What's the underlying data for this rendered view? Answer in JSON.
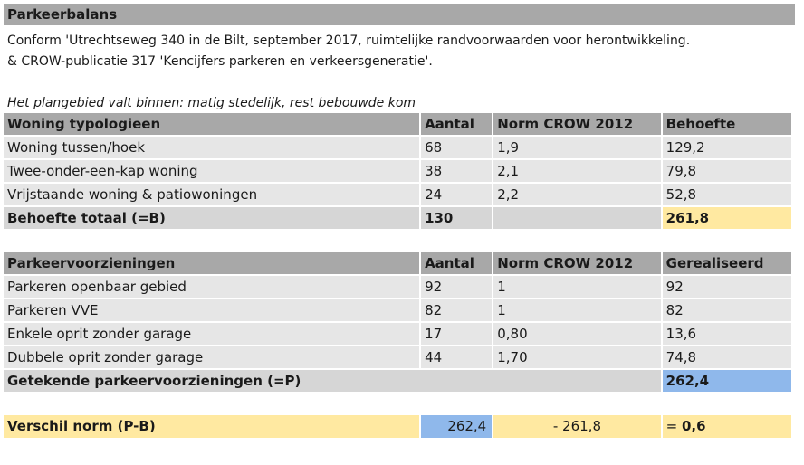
{
  "title": "Parkeerbalans",
  "intro": [
    "Conform 'Utrechtseweg 340 in de Bilt, september 2017, ruimtelijke randvoorwaarden voor herontwikkeling.",
    "& CROW-publicatie 317 'Kencijfers parkeren en verkeersgeneratie'."
  ],
  "note": "Het plangebied valt binnen: matig stedelijk, rest bebouwde kom",
  "woning": {
    "headers": [
      "Woning typologieen",
      "Aantal",
      "Norm CROW 2012",
      "Behoefte"
    ],
    "rows": [
      [
        "Woning tussen/hoek",
        "68",
        "1,9",
        "129,2"
      ],
      [
        "Twee-onder-een-kap woning",
        "38",
        "2,1",
        "79,8"
      ],
      [
        "Vrijstaande woning & patiowoningen",
        "24",
        "2,2",
        "52,8"
      ]
    ],
    "total": {
      "label": "Behoefte totaal (=B)",
      "aantal": "130",
      "norm": "",
      "value": "261,8"
    }
  },
  "parkeer": {
    "headers": [
      "Parkeervoorzieningen",
      "Aantal",
      "Norm CROW 2012",
      "Gerealiseerd"
    ],
    "rows": [
      [
        "Parkeren openbaar gebied",
        "92",
        "1",
        "92"
      ],
      [
        "Parkeren VVE",
        "82",
        "1",
        "82"
      ],
      [
        "Enkele oprit zonder garage",
        "17",
        "0,80",
        "13,6"
      ],
      [
        "Dubbele oprit zonder garage",
        "44",
        "1,70",
        "74,8"
      ]
    ],
    "total": {
      "label": "Getekende parkeervoorzieningen (=P)",
      "value": "262,4"
    }
  },
  "verschil": {
    "label": "Verschil norm (P-B)",
    "p": "262,4",
    "b": "- 261,8",
    "result_prefix": "= ",
    "result": "0,6"
  },
  "colors": {
    "header_gray": "#a8a8a8",
    "row_gray": "#e6e6e6",
    "total_gray": "#d6d6d6",
    "yellow": "#ffe9a1",
    "blue": "#8fb8eb"
  }
}
